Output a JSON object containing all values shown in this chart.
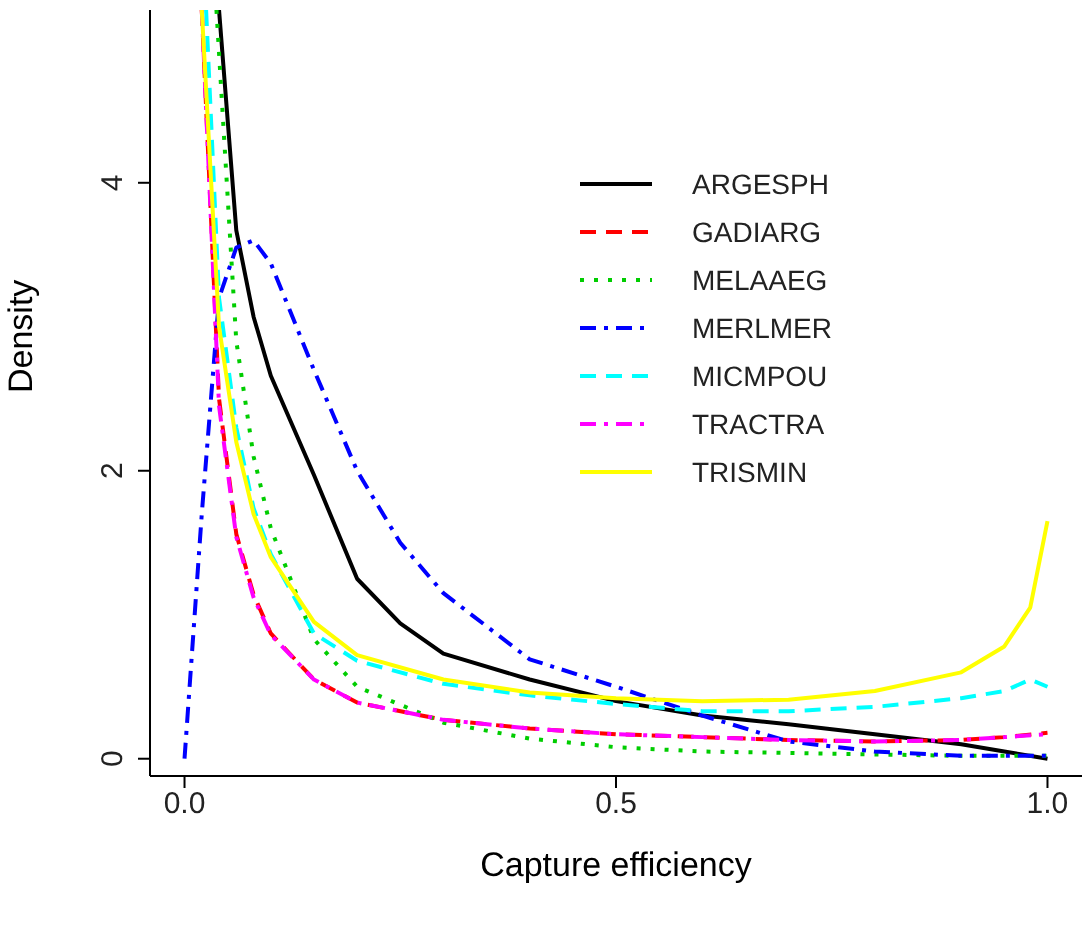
{
  "chart_data": {
    "type": "line",
    "xlabel": "Capture efficiency",
    "ylabel": "Density",
    "xlim": [
      -0.04,
      1.04
    ],
    "ylim": [
      -0.12,
      5.2
    ],
    "xticks": [
      {
        "value": 0,
        "label": "0.0"
      },
      0.5,
      {
        "value": 1,
        "label": "1.0"
      }
    ],
    "yticks": [
      0,
      2,
      4
    ],
    "grid": false,
    "legend": "top right",
    "series": [
      {
        "name": "ARGESPH",
        "color": "#000000",
        "line_style": "solid",
        "x": [
          0.04,
          0.06,
          0.08,
          0.1,
          0.15,
          0.2,
          0.25,
          0.3,
          0.4,
          0.5,
          0.6,
          0.7,
          0.8,
          0.9,
          0.95,
          1.0
        ],
        "values": [
          5.2,
          3.67,
          3.07,
          2.66,
          1.97,
          1.25,
          0.94,
          0.73,
          0.55,
          0.4,
          0.3,
          0.24,
          0.17,
          0.1,
          0.05,
          0.0
        ]
      },
      {
        "name": "GADIARG",
        "color": "#ff0000",
        "line_style": "dashed",
        "x": [
          0.02,
          0.04,
          0.06,
          0.08,
          0.1,
          0.15,
          0.2,
          0.3,
          0.4,
          0.5,
          0.6,
          0.7,
          0.8,
          0.9,
          0.95,
          1.0
        ],
        "values": [
          5.2,
          2.5,
          1.56,
          1.14,
          0.87,
          0.55,
          0.39,
          0.27,
          0.21,
          0.17,
          0.15,
          0.13,
          0.12,
          0.13,
          0.15,
          0.18
        ]
      },
      {
        "name": "MELAAEG",
        "color": "#00cd00",
        "line_style": "dotted",
        "x": [
          0.037,
          0.06,
          0.08,
          0.1,
          0.15,
          0.2,
          0.3,
          0.4,
          0.5,
          0.6,
          0.7,
          0.8,
          0.9,
          1.0
        ],
        "values": [
          5.2,
          2.9,
          2.1,
          1.6,
          0.83,
          0.5,
          0.25,
          0.14,
          0.08,
          0.05,
          0.04,
          0.03,
          0.02,
          0.02
        ]
      },
      {
        "name": "MERLMER",
        "color": "#0000ff",
        "line_style": "dashdot",
        "x": [
          0,
          0.02,
          0.04,
          0.06,
          0.08,
          0.1,
          0.15,
          0.2,
          0.25,
          0.3,
          0.4,
          0.5,
          0.6,
          0.7,
          0.8,
          0.9,
          1.0
        ],
        "values": [
          0,
          1.7,
          3.2,
          3.55,
          3.6,
          3.44,
          2.7,
          2.0,
          1.5,
          1.15,
          0.69,
          0.5,
          0.3,
          0.12,
          0.05,
          0.02,
          0.02
        ]
      },
      {
        "name": "MICMPOU",
        "color": "#00ffff",
        "line_style": "dashed",
        "x": [
          0.025,
          0.04,
          0.06,
          0.08,
          0.1,
          0.15,
          0.2,
          0.3,
          0.4,
          0.5,
          0.6,
          0.7,
          0.8,
          0.9,
          0.95,
          0.98,
          1.0
        ],
        "values": [
          5.2,
          3.2,
          2.3,
          1.74,
          1.42,
          0.87,
          0.68,
          0.52,
          0.44,
          0.38,
          0.33,
          0.33,
          0.36,
          0.42,
          0.47,
          0.55,
          0.5
        ]
      },
      {
        "name": "TRACTRA",
        "color": "#ff00ff",
        "line_style": "dashdot",
        "x": [
          0.02,
          0.04,
          0.06,
          0.08,
          0.1,
          0.15,
          0.2,
          0.3,
          0.4,
          0.5,
          0.6,
          0.7,
          0.8,
          0.9,
          0.95,
          1.0
        ],
        "values": [
          5.2,
          2.45,
          1.54,
          1.12,
          0.86,
          0.55,
          0.39,
          0.27,
          0.21,
          0.17,
          0.15,
          0.13,
          0.12,
          0.13,
          0.15,
          0.17
        ]
      },
      {
        "name": "TRISMIN",
        "color": "#ffff00",
        "line_style": "solid",
        "x": [
          0.02,
          0.04,
          0.06,
          0.08,
          0.1,
          0.15,
          0.2,
          0.3,
          0.4,
          0.5,
          0.6,
          0.7,
          0.8,
          0.9,
          0.95,
          0.98,
          1.0
        ],
        "values": [
          5.2,
          3.0,
          2.2,
          1.7,
          1.4,
          0.95,
          0.72,
          0.55,
          0.46,
          0.42,
          0.4,
          0.41,
          0.47,
          0.6,
          0.78,
          1.05,
          1.65
        ]
      }
    ]
  }
}
